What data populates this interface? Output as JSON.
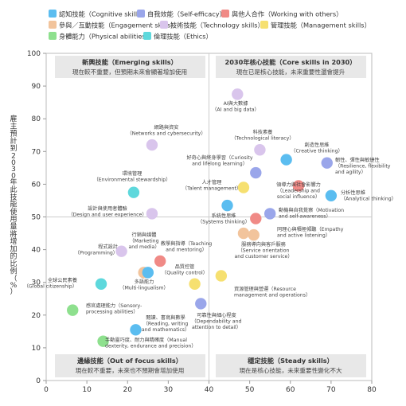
{
  "chart_data": {
    "type": "scatter",
    "xlim": [
      0,
      80
    ],
    "ylim": [
      0,
      100
    ],
    "x_ticks": [
      "0",
      "10",
      "20",
      "30",
      "40",
      "50",
      "60",
      "70",
      "80"
    ],
    "y_ticks": [
      "0",
      "10",
      "20",
      "30",
      "40",
      "50",
      "60",
      "70",
      "80",
      "90",
      "100"
    ],
    "ylabel": "雇主預計到2030年此技能使用量將增加的比例（%）",
    "xlabel": "",
    "grid": false,
    "legend_placement": "top",
    "divider": {
      "x": 40,
      "y": 50
    },
    "legend": [
      {
        "key": "cognitive",
        "label": "認知技能（Cognitive skills）",
        "color": "#5bbdf0"
      },
      {
        "key": "self",
        "label": "自我效能（Self-efficacy）",
        "color": "#9aa6ea"
      },
      {
        "key": "working",
        "label": "與他人合作（Working with others）",
        "color": "#f08a86"
      },
      {
        "key": "engagement",
        "label": "參與／互動技能（Engagement skills）",
        "color": "#f2c49c"
      },
      {
        "key": "technology",
        "label": "技術技能（Technology skills）",
        "color": "#d9c5ec"
      },
      {
        "key": "management",
        "label": "管理技能（Management skills）",
        "color": "#f6e070"
      },
      {
        "key": "physical",
        "label": "身體能力（Physical abilities）",
        "color": "#8ee08e"
      },
      {
        "key": "ethics",
        "label": "倫理技能（Ethics）",
        "color": "#5ed8dc"
      }
    ],
    "quadrants": [
      {
        "title": "新興技能（Emerging skills）",
        "subtitle": "現在較不重要，但預期未來會顯著增加使用"
      },
      {
        "title": "2030年核心技能（Core skills in 2030）",
        "subtitle": "現在已是核心技能，未來重要性還會提升"
      },
      {
        "title": "邊緣技能（Out of focus skills）",
        "subtitle": "現在較不重要，未來也不預期會增加使用"
      },
      {
        "title": "穩定技能（Steady skills）",
        "subtitle": "現在是核心技能，未來重要性變化不大"
      }
    ],
    "points": [
      {
        "x": 47,
        "y": 87.5,
        "cat": "technology",
        "label": [
          "AI與大數據",
          "（AI and big data）"
        ]
      },
      {
        "x": 26,
        "y": 72,
        "cat": "technology",
        "label": [
          "網路與資安",
          "（Networks and cybersecurity）"
        ]
      },
      {
        "x": 52.5,
        "y": 70.5,
        "cat": "technology",
        "label": [
          "科技素養",
          "（Technological literacy）"
        ]
      },
      {
        "x": 59,
        "y": 67.5,
        "cat": "cognitive",
        "label": [
          "創造性思維",
          "（Creative thinking）"
        ]
      },
      {
        "x": 69,
        "y": 66.5,
        "cat": "self",
        "label": [
          "韌性、彈性與敏捷性",
          "（Resilience, flexibility",
          "and agility）"
        ]
      },
      {
        "x": 51.5,
        "y": 63.5,
        "cat": "self",
        "label": [
          "好奇心與終身學習（Curiosity",
          "and lifelong learning）"
        ]
      },
      {
        "x": 21.5,
        "y": 57.5,
        "cat": "ethics",
        "label": [
          "環境管理",
          "（Environmental stewardship）"
        ]
      },
      {
        "x": 48.5,
        "y": 59,
        "cat": "management",
        "label": [
          "人才管理",
          "（Talent management）"
        ]
      },
      {
        "x": 62,
        "y": 59.5,
        "cat": "working",
        "label": [
          "領導力與社會影響力",
          "（Leadership and",
          "social influence）"
        ]
      },
      {
        "x": 70,
        "y": 56.5,
        "cat": "cognitive",
        "label": [
          "分析性思維",
          "（Analytical thinking）"
        ]
      },
      {
        "x": 26,
        "y": 51,
        "cat": "technology",
        "label": [
          "設計與使用者體驗",
          "（Design and user experience）"
        ]
      },
      {
        "x": 44.5,
        "y": 53.5,
        "cat": "cognitive",
        "label": [
          "系統性思維",
          "（Systems thinking）"
        ]
      },
      {
        "x": 55,
        "y": 51,
        "cat": "self",
        "label": [
          "動機與自我覺察（Motivation",
          "and self-awareness）"
        ]
      },
      {
        "x": 51.5,
        "y": 49.5,
        "cat": "working",
        "label": []
      },
      {
        "x": 48.5,
        "y": 45,
        "cat": "engagement",
        "label": [
          "同理心與積極傾聽（Empathy",
          "and active listening）"
        ]
      },
      {
        "x": 18.5,
        "y": 39.5,
        "cat": "technology",
        "label": [
          "程式設計",
          "（Programming）"
        ]
      },
      {
        "x": 24,
        "y": 33,
        "cat": "engagement",
        "label": [
          "行銷與媒體",
          "（Marketing",
          "and media）"
        ]
      },
      {
        "x": 28,
        "y": 36.5,
        "cat": "working",
        "label": [
          "教學與指導（Teaching",
          "and mentoring）"
        ]
      },
      {
        "x": 25,
        "y": 33,
        "cat": "cognitive",
        "label": [
          "多語能力",
          "（Multi-lingualism）"
        ]
      },
      {
        "x": 13.5,
        "y": 29.5,
        "cat": "ethics",
        "label": [
          "全球公民素養",
          "（Global citizenship）"
        ]
      },
      {
        "x": 36.5,
        "y": 29.5,
        "cat": "management",
        "label": [
          "品質控管",
          "（Quality control）"
        ]
      },
      {
        "x": 43,
        "y": 32,
        "cat": "management",
        "label": [
          "資源管理與營運（Resource",
          "management and operations）"
        ]
      },
      {
        "x": 51,
        "y": 44.5,
        "cat": "engagement",
        "label": [
          "服務導向與客戶服務",
          "（Service orientation",
          "and customer service）"
        ]
      },
      {
        "x": 6.5,
        "y": 21.5,
        "cat": "physical",
        "label": [
          "感官處理能力（Sensory-",
          "processing abilities）"
        ]
      },
      {
        "x": 38,
        "y": 23.5,
        "cat": "self",
        "label": [
          "可靠性與細心程度",
          "（Dependability and",
          "attention to detail）"
        ]
      },
      {
        "x": 22,
        "y": 15.5,
        "cat": "cognitive",
        "label": [
          "閱讀、書寫與數學",
          "（Reading, writing",
          "and mathematics）"
        ]
      },
      {
        "x": 14,
        "y": 12,
        "cat": "physical",
        "label": [
          "手動靈巧度、耐力與精確度（Manual",
          "dexterity, endurance and precision）"
        ]
      }
    ]
  }
}
